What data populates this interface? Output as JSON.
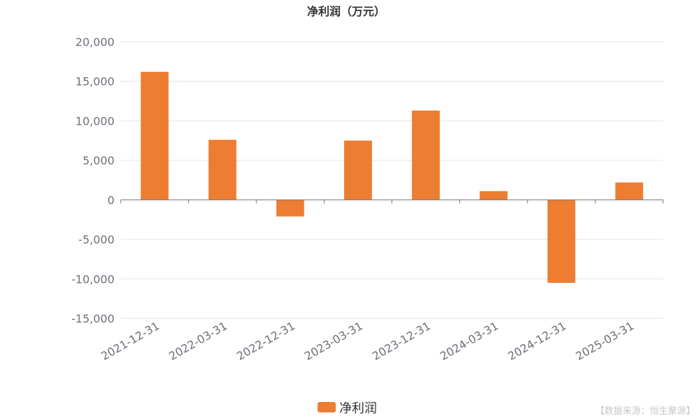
{
  "chart_data": {
    "type": "bar",
    "title": "净利润（万元）",
    "categories": [
      "2021-12-31",
      "2022-03-31",
      "2022-12-31",
      "2023-03-31",
      "2023-12-31",
      "2024-03-31",
      "2024-12-31",
      "2025-03-31"
    ],
    "series": [
      {
        "name": "净利润",
        "values": [
          16200,
          7600,
          -2100,
          7500,
          11300,
          1100,
          -10500,
          2200
        ]
      }
    ],
    "ylim": [
      -15000,
      20000
    ],
    "y_ticks": [
      20000,
      15000,
      10000,
      5000,
      0,
      -5000,
      -10000,
      -15000
    ],
    "y_tick_labels": [
      "20,000",
      "15,000",
      "10,000",
      "5,000",
      "0",
      "-5,000",
      "-10,000",
      "-15,000"
    ],
    "xlabel": "",
    "ylabel": "",
    "grid": true,
    "legend_position": "bottom-center",
    "colors": {
      "bar": "#ed7d31",
      "grid": "#e6e6e6",
      "axis": "#6e7079"
    }
  },
  "source_note": "【数据来源：恒生聚源】"
}
